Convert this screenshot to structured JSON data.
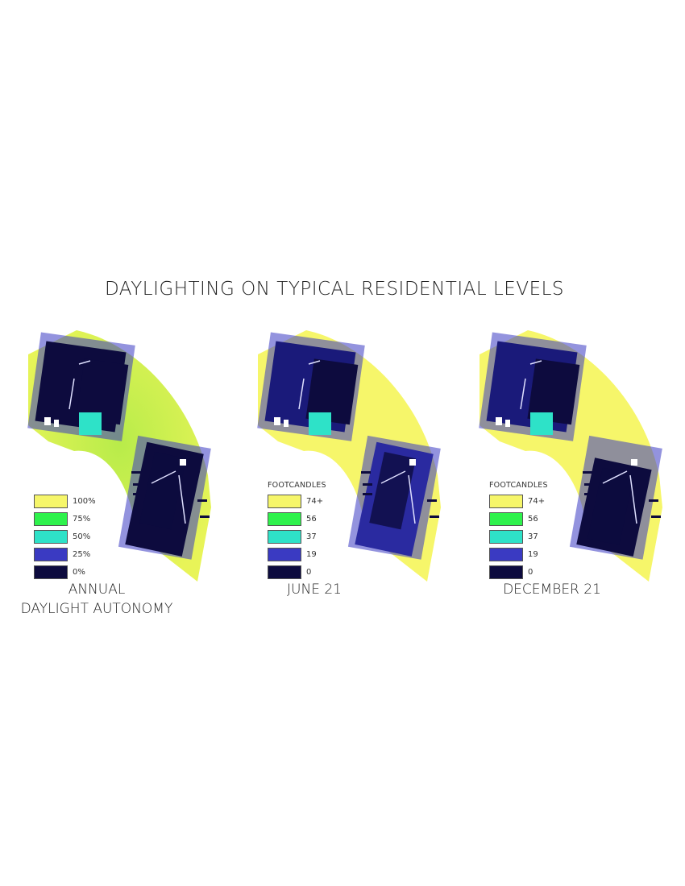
{
  "title": "DAYLIGHTING ON TYPICAL RESIDENTIAL LEVELS",
  "colors": {
    "c100": "#f6f66a",
    "c75": "#2ef24c",
    "c50": "#2ee2c8",
    "c25": "#3a3ac2",
    "c0": "#0d0b3e"
  },
  "panels": [
    {
      "caption_line1": "ANNUAL",
      "caption_line2": "DAYLIGHT AUTONOMY",
      "legend_header": "",
      "legend": [
        {
          "label": "100%",
          "color": "#f6f66a"
        },
        {
          "label": "75%",
          "color": "#2ef24c"
        },
        {
          "label": "50%",
          "color": "#2ee2c8"
        },
        {
          "label": "25%",
          "color": "#3a3ac2"
        },
        {
          "label": "0%",
          "color": "#0d0b3e"
        }
      ]
    },
    {
      "caption_line1": "JUNE 21",
      "caption_line2": "",
      "legend_header": "FOOTCANDLES",
      "legend": [
        {
          "label": "74+",
          "color": "#f6f66a"
        },
        {
          "label": "56",
          "color": "#2ef24c"
        },
        {
          "label": "37",
          "color": "#2ee2c8"
        },
        {
          "label": "19",
          "color": "#3a3ac2"
        },
        {
          "label": "0",
          "color": "#0d0b3e"
        }
      ]
    },
    {
      "caption_line1": "DECEMBER 21",
      "caption_line2": "",
      "legend_header": "FOOTCANDLES",
      "legend": [
        {
          "label": "74+",
          "color": "#f6f66a"
        },
        {
          "label": "56",
          "color": "#2ef24c"
        },
        {
          "label": "37",
          "color": "#2ee2c8"
        },
        {
          "label": "19",
          "color": "#3a3ac2"
        },
        {
          "label": "0",
          "color": "#0d0b3e"
        }
      ]
    }
  ]
}
